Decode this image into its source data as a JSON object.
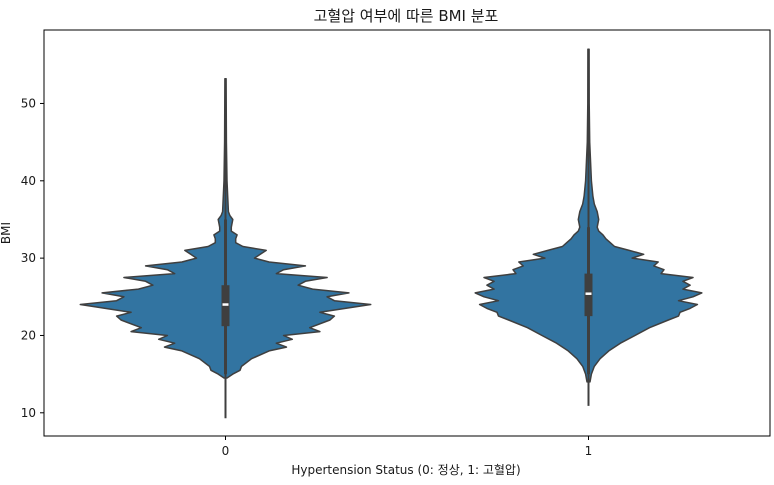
{
  "chart_data": {
    "type": "violin",
    "title": "고혈압 여부에 따른 BMI 분포",
    "xlabel": "Hypertension Status (0: 정상, 1: 고혈압)",
    "ylabel": "BMI",
    "categories": [
      "0",
      "1"
    ],
    "ylim": [
      7,
      59.5
    ],
    "yticks": [
      10,
      20,
      30,
      40,
      50
    ],
    "grid": false,
    "colors": {
      "fill": "#3274a1",
      "edge": "#3f3f3f",
      "box": "#3f3f3f",
      "median": "#ffffff"
    },
    "violins": [
      {
        "category": "0",
        "min": 9.3,
        "max": 53.2,
        "q1": 21.2,
        "median": 24.0,
        "q3": 26.5,
        "whisker_low": 15.0,
        "whisker_high": 35.0,
        "profile": [
          [
            14.5,
            0.01
          ],
          [
            15.0,
            0.05
          ],
          [
            15.5,
            0.1
          ],
          [
            16.0,
            0.11
          ],
          [
            17.0,
            0.18
          ],
          [
            18.0,
            0.3
          ],
          [
            18.5,
            0.42
          ],
          [
            19.0,
            0.35
          ],
          [
            19.5,
            0.46
          ],
          [
            20.0,
            0.4
          ],
          [
            20.5,
            0.65
          ],
          [
            21.0,
            0.58
          ],
          [
            22.0,
            0.72
          ],
          [
            22.5,
            0.75
          ],
          [
            23.0,
            0.65
          ],
          [
            24.0,
            1.0
          ],
          [
            24.5,
            0.75
          ],
          [
            25.0,
            0.7
          ],
          [
            25.5,
            0.85
          ],
          [
            26.0,
            0.6
          ],
          [
            26.5,
            0.5
          ],
          [
            27.0,
            0.55
          ],
          [
            27.5,
            0.7
          ],
          [
            28.0,
            0.35
          ],
          [
            28.5,
            0.4
          ],
          [
            29.0,
            0.55
          ],
          [
            29.5,
            0.3
          ],
          [
            30.0,
            0.2
          ],
          [
            30.5,
            0.24
          ],
          [
            31.0,
            0.28
          ],
          [
            31.5,
            0.12
          ],
          [
            32.0,
            0.07
          ],
          [
            32.5,
            0.07
          ],
          [
            33.0,
            0.08
          ],
          [
            33.5,
            0.04
          ],
          [
            34.0,
            0.04
          ],
          [
            35.0,
            0.05
          ],
          [
            35.5,
            0.03
          ],
          [
            36.0,
            0.02
          ],
          [
            38.0,
            0.015
          ],
          [
            40.0,
            0.01
          ],
          [
            45.0,
            0.006
          ],
          [
            53.2,
            0.004
          ]
        ]
      },
      {
        "category": "1",
        "min": 10.9,
        "max": 57.0,
        "q1": 22.5,
        "median": 25.4,
        "q3": 28.0,
        "whisker_low": 15.0,
        "whisker_high": 34.0,
        "profile": [
          [
            14.0,
            0.01
          ],
          [
            15.0,
            0.02
          ],
          [
            16.0,
            0.04
          ],
          [
            17.0,
            0.08
          ],
          [
            18.0,
            0.14
          ],
          [
            19.0,
            0.22
          ],
          [
            20.0,
            0.32
          ],
          [
            21.0,
            0.42
          ],
          [
            22.0,
            0.55
          ],
          [
            22.5,
            0.62
          ],
          [
            23.0,
            0.63
          ],
          [
            23.5,
            0.7
          ],
          [
            24.0,
            0.75
          ],
          [
            24.5,
            0.62
          ],
          [
            25.0,
            0.72
          ],
          [
            25.5,
            0.78
          ],
          [
            26.0,
            0.65
          ],
          [
            26.5,
            0.7
          ],
          [
            27.0,
            0.65
          ],
          [
            27.5,
            0.72
          ],
          [
            28.0,
            0.5
          ],
          [
            28.5,
            0.52
          ],
          [
            29.0,
            0.45
          ],
          [
            29.5,
            0.48
          ],
          [
            30.0,
            0.3
          ],
          [
            30.5,
            0.38
          ],
          [
            31.0,
            0.28
          ],
          [
            31.5,
            0.18
          ],
          [
            32.0,
            0.15
          ],
          [
            32.5,
            0.12
          ],
          [
            33.0,
            0.1
          ],
          [
            33.5,
            0.07
          ],
          [
            34.0,
            0.06
          ],
          [
            35.0,
            0.07
          ],
          [
            36.0,
            0.06
          ],
          [
            37.0,
            0.04
          ],
          [
            38.0,
            0.03
          ],
          [
            40.0,
            0.02
          ],
          [
            45.0,
            0.008
          ],
          [
            50.0,
            0.005
          ],
          [
            57.0,
            0.004
          ]
        ]
      }
    ]
  }
}
